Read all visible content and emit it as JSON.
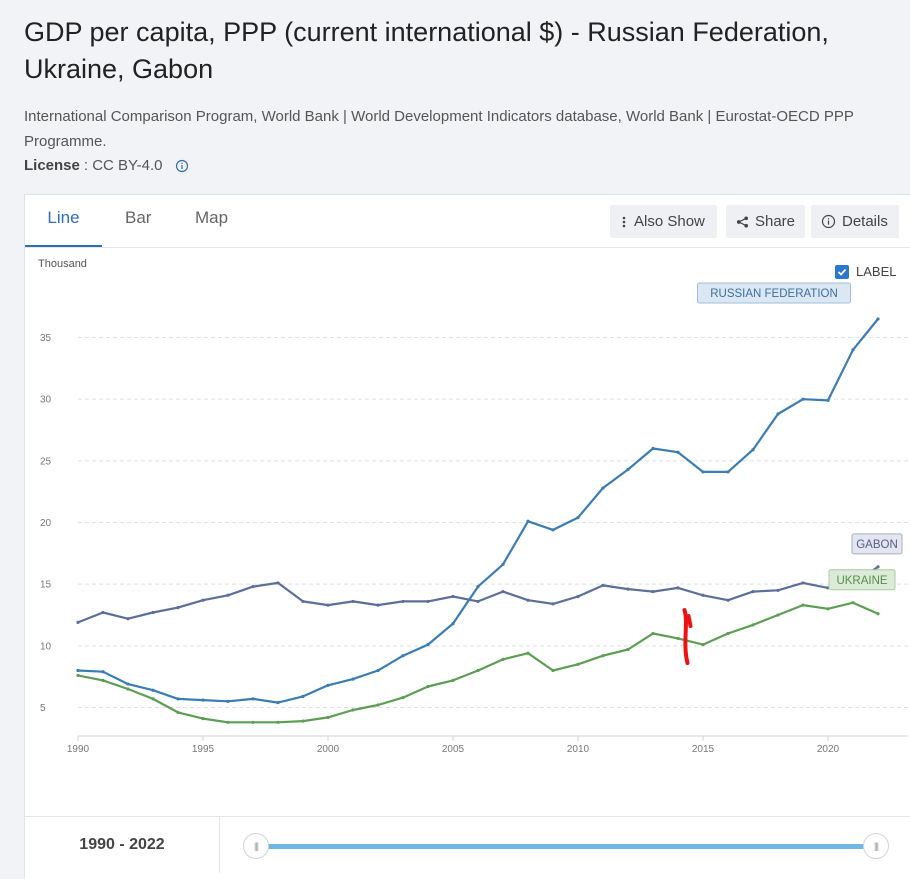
{
  "header": {
    "title": "GDP per capita, PPP (current international $) - Russian Federation, Ukraine, Gabon",
    "source": "International Comparison Program, World Bank | World Development Indicators database, World Bank | Eurostat-OECD PPP Programme.",
    "license_label": "License",
    "license_value": ": CC BY-4.0"
  },
  "tabs": [
    {
      "label": "Line"
    },
    {
      "label": "Bar"
    },
    {
      "label": "Map"
    }
  ],
  "toolbar": {
    "also_show": "Also Show",
    "share": "Share",
    "details": "Details"
  },
  "label_toggle": {
    "label": "LABEL",
    "checked": true
  },
  "range": {
    "text": "1990 - 2022",
    "start": 1990,
    "end": 2022
  },
  "colors": {
    "russia": "#3b7cb3",
    "gabon": "#5c6e9a",
    "ukraine": "#5d9e55",
    "accent": "#2f6fb2",
    "annotation": "#ee1111"
  },
  "chart_data": {
    "type": "line",
    "unit_label": "Thousand",
    "x": [
      1990,
      1991,
      1992,
      1993,
      1994,
      1995,
      1996,
      1997,
      1998,
      1999,
      2000,
      2001,
      2002,
      2003,
      2004,
      2005,
      2006,
      2007,
      2008,
      2009,
      2010,
      2011,
      2012,
      2013,
      2014,
      2015,
      2016,
      2017,
      2018,
      2019,
      2020,
      2021,
      2022
    ],
    "x_ticks": [
      1990,
      1995,
      2000,
      2005,
      2010,
      2015,
      2020
    ],
    "y_ticks": [
      5,
      10,
      15,
      20,
      25,
      30,
      35
    ],
    "ylim": [
      3.5,
      37.5
    ],
    "xlim": [
      1990,
      2022
    ],
    "series": [
      {
        "name": "RUSSIAN FEDERATION",
        "color": "#3b7cb3",
        "values": [
          8.0,
          7.9,
          6.9,
          6.4,
          5.7,
          5.6,
          5.5,
          5.7,
          5.4,
          5.9,
          6.8,
          7.3,
          8.0,
          9.2,
          10.1,
          11.8,
          14.8,
          16.6,
          20.1,
          19.4,
          20.4,
          22.8,
          24.3,
          26.0,
          25.7,
          24.1,
          24.1,
          25.9,
          28.8,
          30.0,
          29.9,
          34.0,
          36.5
        ]
      },
      {
        "name": "GABON",
        "color": "#5c6e9a",
        "values": [
          11.9,
          12.7,
          12.2,
          12.7,
          13.1,
          13.7,
          14.1,
          14.8,
          15.1,
          13.6,
          13.3,
          13.6,
          13.3,
          13.6,
          13.6,
          14.0,
          13.6,
          14.4,
          13.7,
          13.4,
          14.0,
          14.9,
          14.6,
          14.4,
          14.7,
          14.1,
          13.7,
          14.4,
          14.5,
          15.1,
          14.7,
          15.1,
          16.4
        ]
      },
      {
        "name": "UKRAINE",
        "color": "#5d9e55",
        "values": [
          7.6,
          7.2,
          6.5,
          5.7,
          4.6,
          4.1,
          3.8,
          3.8,
          3.8,
          3.9,
          4.2,
          4.8,
          5.2,
          5.8,
          6.7,
          7.2,
          8.0,
          8.9,
          9.4,
          8.0,
          8.5,
          9.2,
          9.7,
          11.0,
          10.6,
          10.1,
          11.0,
          11.7,
          12.5,
          13.3,
          13.0,
          13.5,
          12.6
        ]
      }
    ]
  }
}
